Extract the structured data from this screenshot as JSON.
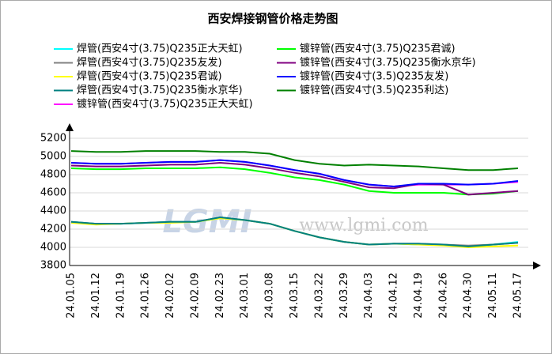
{
  "chart_data": {
    "type": "line",
    "title": "西安焊接钢管价格走势图",
    "watermark": [
      "LGMI",
      "www.lgmi.com"
    ],
    "categories": [
      "24.01.05",
      "24.01.12",
      "24.01.19",
      "24.01.26",
      "24.02.02",
      "24.02.09",
      "24.02.23",
      "24.03.01",
      "24.03.08",
      "24.03.15",
      "24.03.22",
      "24.03.29",
      "24.04.03",
      "24.04.12",
      "24.04.19",
      "24.04.26",
      "24.04.30",
      "24.05.11",
      "24.05.17"
    ],
    "ylim": [
      3800,
      5200
    ],
    "yticks": [
      3800,
      4000,
      4200,
      4400,
      4600,
      4800,
      5000,
      5200
    ],
    "grid": true,
    "series": [
      {
        "name": "焊管(西安4寸(3.75)Q235正大天虹)",
        "color": "#00ffff",
        "values": [
          4280,
          4260,
          4260,
          4270,
          4280,
          4280,
          4320,
          4300,
          4260,
          4180,
          4110,
          4060,
          4030,
          4040,
          4030,
          4030,
          4010,
          4030,
          4060
        ]
      },
      {
        "name": "焊管(西安4寸(3.75)Q235友发)",
        "color": "#808080",
        "values": [
          4280,
          4260,
          4260,
          4270,
          4280,
          4280,
          4330,
          4300,
          4260,
          4180,
          4110,
          4060,
          4030,
          4040,
          4040,
          4030,
          4020,
          4030,
          4050
        ]
      },
      {
        "name": "焊管(西安4寸(3.75)Q235君诚)",
        "color": "#ffff00",
        "values": [
          4270,
          4250,
          4260,
          4270,
          4270,
          4280,
          4320,
          4300,
          4260,
          4180,
          4110,
          4060,
          4030,
          4040,
          4030,
          4020,
          4000,
          4010,
          4020
        ]
      },
      {
        "name": "焊管(西安4寸(3.75)Q235衡水京华)",
        "color": "#008080",
        "values": [
          4280,
          4260,
          4260,
          4270,
          4280,
          4280,
          4330,
          4300,
          4260,
          4180,
          4110,
          4060,
          4030,
          4040,
          4040,
          4030,
          4010,
          4030,
          4050
        ]
      },
      {
        "name": "镀锌管(西安4寸(3.75)Q235正大天虹)",
        "color": "#ff00ff",
        "values": [
          4930,
          4920,
          4920,
          4930,
          4940,
          4940,
          4960,
          4940,
          4900,
          4850,
          4810,
          4740,
          4690,
          4670,
          4690,
          4690,
          4690,
          4700,
          4720
        ]
      },
      {
        "name": "镀锌管(西安4寸(3.75)Q235君诚)",
        "color": "#00ff00",
        "values": [
          4870,
          4860,
          4860,
          4870,
          4870,
          4870,
          4880,
          4860,
          4820,
          4770,
          4740,
          4690,
          4620,
          4600,
          4600,
          4600,
          4580,
          4590,
          4620
        ]
      },
      {
        "name": "镀锌管(西安4寸(3.75)Q235衡水京华)",
        "color": "#800080",
        "values": [
          4900,
          4890,
          4890,
          4900,
          4910,
          4910,
          4930,
          4910,
          4870,
          4820,
          4780,
          4720,
          4660,
          4650,
          4700,
          4690,
          4580,
          4600,
          4620
        ]
      },
      {
        "name": "镀锌管(西安4寸(3.5)Q235友发)",
        "color": "#0000ff",
        "values": [
          4930,
          4920,
          4920,
          4930,
          4940,
          4940,
          4960,
          4940,
          4900,
          4850,
          4810,
          4740,
          4690,
          4670,
          4700,
          4700,
          4690,
          4700,
          4730
        ]
      },
      {
        "name": "镀锌管(西安4寸(3.5)Q235利达)",
        "color": "#008000",
        "values": [
          5060,
          5050,
          5050,
          5060,
          5060,
          5060,
          5050,
          5050,
          5030,
          4960,
          4920,
          4900,
          4910,
          4900,
          4890,
          4870,
          4850,
          4850,
          4870
        ]
      }
    ]
  }
}
